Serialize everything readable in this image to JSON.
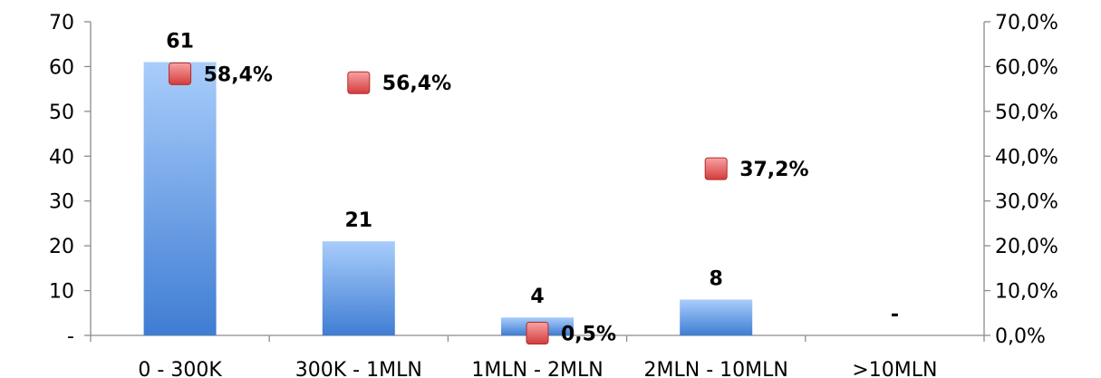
{
  "chart_data": {
    "type": "bar",
    "categories": [
      "0 - 300K",
      "300K - 1MLN",
      "1MLN - 2MLN",
      "2MLN - 10MLN",
      ">10MLN"
    ],
    "series": [
      {
        "kind": "bar",
        "axis": "left",
        "values": [
          61,
          21,
          4,
          8,
          0
        ],
        "labels": [
          "61",
          "21",
          "4",
          "8",
          "-"
        ],
        "color": "#4a86d8"
      },
      {
        "kind": "marker",
        "axis": "right",
        "values": [
          58.4,
          56.4,
          0.5,
          37.2,
          null
        ],
        "labels": [
          "58,4%",
          "56,4%",
          "0,5%",
          "37,2%",
          ""
        ],
        "color": "#e04040"
      }
    ],
    "y_left": {
      "range": [
        0,
        70
      ],
      "ticks": [
        0,
        10,
        20,
        30,
        40,
        50,
        60,
        70
      ],
      "tick_labels": [
        "-",
        "10",
        "20",
        "30",
        "40",
        "50",
        "60",
        "70"
      ]
    },
    "y_right": {
      "range": [
        0,
        70
      ],
      "ticks": [
        0,
        10,
        20,
        30,
        40,
        50,
        60,
        70
      ],
      "tick_labels": [
        "0,0%",
        "10,0%",
        "20,0%",
        "30,0%",
        "40,0%",
        "50,0%",
        "60,0%",
        "70,0%"
      ]
    },
    "title": "",
    "grid": false,
    "legend": "none"
  }
}
